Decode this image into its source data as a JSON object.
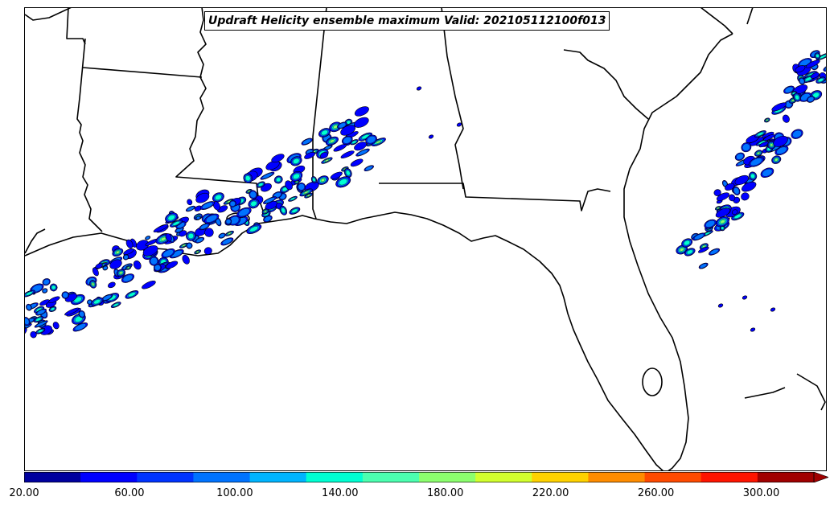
{
  "title": "Updraft Helicity ensemble maximum Valid: 202105112100f013",
  "colorbar": {
    "min": 20,
    "max": 300,
    "step": 20,
    "extend": "max",
    "colors": [
      "#00009e",
      "#0000ff",
      "#0033ff",
      "#0073ff",
      "#00b4ff",
      "#00ffd2",
      "#4cffb0",
      "#8cff6e",
      "#d2ff2e",
      "#ffd200",
      "#ff8c00",
      "#ff4a00",
      "#ff1400",
      "#a00000"
    ],
    "tick_labels": [
      "20.00",
      "60.00",
      "100.00",
      "140.00",
      "180.00",
      "220.00",
      "260.00",
      "300.00"
    ]
  },
  "map": {
    "region": "Southeastern United States and Gulf of Mexico",
    "features": [
      "state-borders",
      "coastlines",
      "lakes"
    ]
  }
}
